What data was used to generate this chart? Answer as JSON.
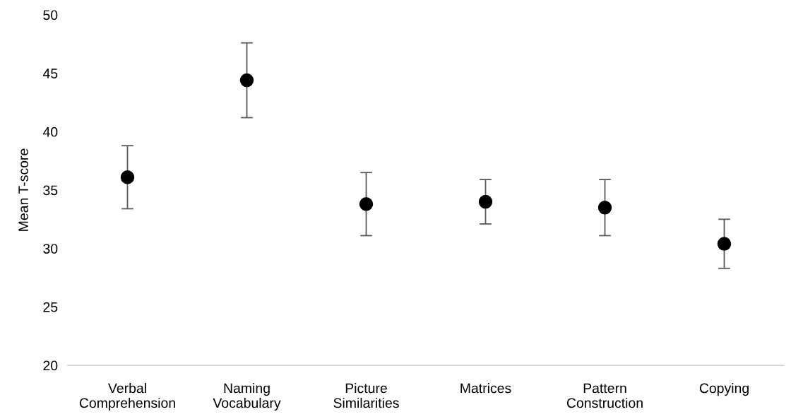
{
  "chart_data": {
    "type": "scatter",
    "ylabel": "Mean T-score",
    "categories": [
      "Verbal\nComprehension",
      "Naming\nVocabulary",
      "Picture\nSimilarities",
      "Matrices",
      "Pattern\nConstruction",
      "Copying"
    ],
    "series": [
      {
        "color": "#000000",
        "values": [
          36.1,
          44.4,
          33.8,
          34.0,
          33.5,
          30.4
        ],
        "errors": [
          2.7,
          3.2,
          2.7,
          1.9,
          2.4,
          2.1
        ]
      }
    ],
    "ylim": [
      20,
      50
    ],
    "yticks": [
      20,
      25,
      30,
      35,
      40,
      45,
      50
    ],
    "grid": false,
    "marker": "circle",
    "legend": false
  }
}
